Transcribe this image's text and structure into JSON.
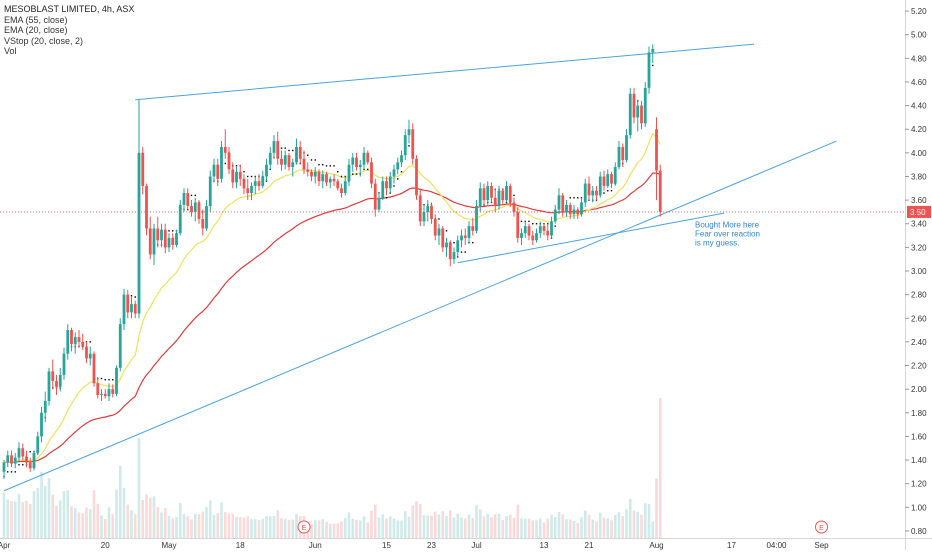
{
  "legend": {
    "symbol_line": "MESOBLAST LIMITED, 4h, ASX",
    "ema55": "EMA (55, close)",
    "ema20": "EMA (20, close)",
    "vstop": "VStop (20, close, 2)",
    "vol": "Vol"
  },
  "chart_data": {
    "type": "candlestick",
    "title": "MESOBLAST LIMITED, 4h, ASX",
    "ylim": [
      0.74,
      5.26
    ],
    "y_ticks": [
      "5.20",
      "5.00",
      "4.80",
      "4.60",
      "4.40",
      "4.20",
      "4.00",
      "3.80",
      "3.60",
      "3.40",
      "3.20",
      "3.00",
      "2.80",
      "2.60",
      "2.40",
      "2.20",
      "2.00",
      "1.80",
      "1.60",
      "1.40",
      "1.20",
      "1.00",
      "0.80"
    ],
    "x_ticks": [
      {
        "label": "Apr",
        "bar": 0
      },
      {
        "label": "20",
        "bar": 27
      },
      {
        "label": "May",
        "bar": 44
      },
      {
        "label": "18",
        "bar": 63
      },
      {
        "label": "Jun",
        "bar": 83
      },
      {
        "label": "15",
        "bar": 102
      },
      {
        "label": "23",
        "bar": 114
      },
      {
        "label": "Jul",
        "bar": 126
      },
      {
        "label": "13",
        "bar": 144
      },
      {
        "label": "21",
        "bar": 156
      },
      {
        "label": "Aug",
        "bar": 174
      },
      {
        "label": "17",
        "bar": 194
      },
      {
        "label": "04:00",
        "bar": 206
      },
      {
        "label": "Sep",
        "bar": 218
      }
    ],
    "last_price": {
      "value": 3.5,
      "label": "3.50"
    },
    "annotation": {
      "text": [
        "Bought More here",
        "Fear over reaction",
        "is my guess."
      ],
      "bar": 180,
      "y": 3.42
    },
    "earnings_markers": [
      {
        "label": "E",
        "bar": 80
      },
      {
        "label": "E",
        "bar": 218
      }
    ],
    "trend_lines": [
      {
        "from": [
          35,
          4.45
        ],
        "to": [
          200,
          4.92
        ]
      },
      {
        "from": [
          0,
          1.14
        ],
        "to": [
          222,
          4.1
        ]
      },
      {
        "from": [
          121,
          3.07
        ],
        "to": [
          192,
          3.49
        ]
      }
    ],
    "colors": {
      "up": "#26a69a",
      "down": "#ef5350",
      "ema55": "#e03b3b",
      "ema20": "#f0e15b",
      "vstop": "#000000",
      "trend": "#4aa3df",
      "price_tag": "#ef5350"
    },
    "candles": [
      {
        "o": 1.3,
        "h": 1.4,
        "l": 1.24,
        "c": 1.38
      },
      {
        "o": 1.38,
        "h": 1.48,
        "l": 1.34,
        "c": 1.44
      },
      {
        "o": 1.44,
        "h": 1.48,
        "l": 1.34,
        "c": 1.37
      },
      {
        "o": 1.37,
        "h": 1.46,
        "l": 1.33,
        "c": 1.42
      },
      {
        "o": 1.42,
        "h": 1.55,
        "l": 1.38,
        "c": 1.5
      },
      {
        "o": 1.5,
        "h": 1.54,
        "l": 1.4,
        "c": 1.43
      },
      {
        "o": 1.43,
        "h": 1.48,
        "l": 1.34,
        "c": 1.38
      },
      {
        "o": 1.38,
        "h": 1.42,
        "l": 1.3,
        "c": 1.33
      },
      {
        "o": 1.33,
        "h": 1.48,
        "l": 1.31,
        "c": 1.46
      },
      {
        "o": 1.46,
        "h": 1.64,
        "l": 1.44,
        "c": 1.6
      },
      {
        "o": 1.6,
        "h": 1.85,
        "l": 1.55,
        "c": 1.8
      },
      {
        "o": 1.8,
        "h": 1.98,
        "l": 1.72,
        "c": 1.9
      },
      {
        "o": 1.9,
        "h": 2.18,
        "l": 1.86,
        "c": 2.15
      },
      {
        "o": 2.15,
        "h": 2.25,
        "l": 2.0,
        "c": 2.07
      },
      {
        "o": 2.07,
        "h": 2.12,
        "l": 1.95,
        "c": 2.02
      },
      {
        "o": 2.02,
        "h": 2.18,
        "l": 1.98,
        "c": 2.12
      },
      {
        "o": 2.12,
        "h": 2.35,
        "l": 2.08,
        "c": 2.3
      },
      {
        "o": 2.3,
        "h": 2.55,
        "l": 2.25,
        "c": 2.5
      },
      {
        "o": 2.5,
        "h": 2.52,
        "l": 2.32,
        "c": 2.38
      },
      {
        "o": 2.38,
        "h": 2.48,
        "l": 2.3,
        "c": 2.44
      },
      {
        "o": 2.44,
        "h": 2.5,
        "l": 2.35,
        "c": 2.4
      },
      {
        "o": 2.4,
        "h": 2.47,
        "l": 2.33,
        "c": 2.36
      },
      {
        "o": 2.36,
        "h": 2.4,
        "l": 2.22,
        "c": 2.26
      },
      {
        "o": 2.26,
        "h": 2.36,
        "l": 2.2,
        "c": 2.3
      },
      {
        "o": 2.3,
        "h": 2.32,
        "l": 2.02,
        "c": 2.05
      },
      {
        "o": 2.05,
        "h": 2.1,
        "l": 1.92,
        "c": 1.95
      },
      {
        "o": 1.95,
        "h": 2.0,
        "l": 1.9,
        "c": 1.96
      },
      {
        "o": 1.96,
        "h": 2.0,
        "l": 1.92,
        "c": 1.94
      },
      {
        "o": 1.94,
        "h": 2.05,
        "l": 1.9,
        "c": 2.0
      },
      {
        "o": 2.0,
        "h": 2.04,
        "l": 1.93,
        "c": 1.96
      },
      {
        "o": 1.96,
        "h": 2.2,
        "l": 1.94,
        "c": 2.18
      },
      {
        "o": 2.18,
        "h": 2.6,
        "l": 2.15,
        "c": 2.55
      },
      {
        "o": 2.55,
        "h": 2.85,
        "l": 2.5,
        "c": 2.8
      },
      {
        "o": 2.8,
        "h": 2.84,
        "l": 2.6,
        "c": 2.65
      },
      {
        "o": 2.65,
        "h": 2.78,
        "l": 2.6,
        "c": 2.72
      },
      {
        "o": 2.72,
        "h": 2.75,
        "l": 2.6,
        "c": 2.64
      },
      {
        "o": 2.64,
        "h": 4.45,
        "l": 2.6,
        "c": 4.0
      },
      {
        "o": 4.0,
        "h": 4.05,
        "l": 3.65,
        "c": 3.72
      },
      {
        "o": 3.72,
        "h": 3.74,
        "l": 3.3,
        "c": 3.36
      },
      {
        "o": 3.36,
        "h": 3.46,
        "l": 3.1,
        "c": 3.14
      },
      {
        "o": 3.14,
        "h": 3.4,
        "l": 3.05,
        "c": 3.36
      },
      {
        "o": 3.36,
        "h": 3.46,
        "l": 3.2,
        "c": 3.26
      },
      {
        "o": 3.26,
        "h": 3.4,
        "l": 3.2,
        "c": 3.35
      },
      {
        "o": 3.35,
        "h": 3.4,
        "l": 3.15,
        "c": 3.2
      },
      {
        "o": 3.2,
        "h": 3.32,
        "l": 3.16,
        "c": 3.28
      },
      {
        "o": 3.28,
        "h": 3.32,
        "l": 3.18,
        "c": 3.22
      },
      {
        "o": 3.22,
        "h": 3.35,
        "l": 3.2,
        "c": 3.32
      },
      {
        "o": 3.32,
        "h": 3.6,
        "l": 3.3,
        "c": 3.56
      },
      {
        "o": 3.56,
        "h": 3.7,
        "l": 3.5,
        "c": 3.66
      },
      {
        "o": 3.66,
        "h": 3.7,
        "l": 3.52,
        "c": 3.55
      },
      {
        "o": 3.55,
        "h": 3.6,
        "l": 3.46,
        "c": 3.5
      },
      {
        "o": 3.5,
        "h": 3.62,
        "l": 3.42,
        "c": 3.58
      },
      {
        "o": 3.58,
        "h": 3.6,
        "l": 3.4,
        "c": 3.44
      },
      {
        "o": 3.44,
        "h": 3.52,
        "l": 3.3,
        "c": 3.36
      },
      {
        "o": 3.36,
        "h": 3.6,
        "l": 3.34,
        "c": 3.55
      },
      {
        "o": 3.55,
        "h": 3.85,
        "l": 3.5,
        "c": 3.8
      },
      {
        "o": 3.8,
        "h": 3.95,
        "l": 3.75,
        "c": 3.9
      },
      {
        "o": 3.9,
        "h": 3.95,
        "l": 3.72,
        "c": 3.78
      },
      {
        "o": 3.78,
        "h": 4.1,
        "l": 3.75,
        "c": 4.05
      },
      {
        "o": 4.05,
        "h": 4.2,
        "l": 3.95,
        "c": 4.0
      },
      {
        "o": 4.0,
        "h": 4.05,
        "l": 3.82,
        "c": 3.86
      },
      {
        "o": 3.86,
        "h": 3.92,
        "l": 3.7,
        "c": 3.75
      },
      {
        "o": 3.75,
        "h": 3.88,
        "l": 3.7,
        "c": 3.84
      },
      {
        "o": 3.84,
        "h": 3.9,
        "l": 3.72,
        "c": 3.78
      },
      {
        "o": 3.78,
        "h": 3.82,
        "l": 3.65,
        "c": 3.7
      },
      {
        "o": 3.7,
        "h": 3.78,
        "l": 3.6,
        "c": 3.66
      },
      {
        "o": 3.66,
        "h": 3.75,
        "l": 3.6,
        "c": 3.72
      },
      {
        "o": 3.72,
        "h": 3.8,
        "l": 3.65,
        "c": 3.76
      },
      {
        "o": 3.76,
        "h": 3.82,
        "l": 3.68,
        "c": 3.72
      },
      {
        "o": 3.72,
        "h": 3.85,
        "l": 3.7,
        "c": 3.8
      },
      {
        "o": 3.8,
        "h": 3.95,
        "l": 3.76,
        "c": 3.9
      },
      {
        "o": 3.9,
        "h": 4.05,
        "l": 3.86,
        "c": 4.0
      },
      {
        "o": 4.0,
        "h": 4.15,
        "l": 3.95,
        "c": 4.1
      },
      {
        "o": 4.1,
        "h": 4.18,
        "l": 3.9,
        "c": 3.95
      },
      {
        "o": 3.95,
        "h": 4.02,
        "l": 3.85,
        "c": 3.9
      },
      {
        "o": 3.9,
        "h": 4.02,
        "l": 3.86,
        "c": 3.98
      },
      {
        "o": 3.98,
        "h": 4.0,
        "l": 3.85,
        "c": 3.88
      },
      {
        "o": 3.88,
        "h": 3.95,
        "l": 3.8,
        "c": 3.92
      },
      {
        "o": 3.92,
        "h": 4.12,
        "l": 3.9,
        "c": 4.05
      },
      {
        "o": 4.05,
        "h": 4.1,
        "l": 3.9,
        "c": 3.95
      },
      {
        "o": 3.95,
        "h": 4.02,
        "l": 3.82,
        "c": 3.86
      },
      {
        "o": 3.86,
        "h": 3.92,
        "l": 3.8,
        "c": 3.84
      },
      {
        "o": 3.84,
        "h": 3.86,
        "l": 3.76,
        "c": 3.8
      },
      {
        "o": 3.8,
        "h": 3.88,
        "l": 3.74,
        "c": 3.84
      },
      {
        "o": 3.84,
        "h": 3.86,
        "l": 3.72,
        "c": 3.76
      },
      {
        "o": 3.76,
        "h": 3.85,
        "l": 3.7,
        "c": 3.82
      },
      {
        "o": 3.82,
        "h": 3.84,
        "l": 3.72,
        "c": 3.75
      },
      {
        "o": 3.75,
        "h": 3.8,
        "l": 3.7,
        "c": 3.78
      },
      {
        "o": 3.78,
        "h": 3.82,
        "l": 3.72,
        "c": 3.76
      },
      {
        "o": 3.76,
        "h": 3.78,
        "l": 3.68,
        "c": 3.7
      },
      {
        "o": 3.7,
        "h": 3.74,
        "l": 3.62,
        "c": 3.66
      },
      {
        "o": 3.66,
        "h": 3.8,
        "l": 3.64,
        "c": 3.76
      },
      {
        "o": 3.76,
        "h": 3.95,
        "l": 3.72,
        "c": 3.9
      },
      {
        "o": 3.9,
        "h": 4.0,
        "l": 3.84,
        "c": 3.96
      },
      {
        "o": 3.96,
        "h": 4.0,
        "l": 3.85,
        "c": 3.88
      },
      {
        "o": 3.88,
        "h": 3.94,
        "l": 3.8,
        "c": 3.9
      },
      {
        "o": 3.9,
        "h": 4.05,
        "l": 3.86,
        "c": 4.0
      },
      {
        "o": 4.0,
        "h": 4.02,
        "l": 3.9,
        "c": 3.92
      },
      {
        "o": 3.92,
        "h": 3.96,
        "l": 3.7,
        "c": 3.74
      },
      {
        "o": 3.74,
        "h": 3.78,
        "l": 3.46,
        "c": 3.52
      },
      {
        "o": 3.52,
        "h": 3.66,
        "l": 3.5,
        "c": 3.62
      },
      {
        "o": 3.62,
        "h": 3.8,
        "l": 3.6,
        "c": 3.76
      },
      {
        "o": 3.76,
        "h": 3.8,
        "l": 3.64,
        "c": 3.7
      },
      {
        "o": 3.7,
        "h": 3.84,
        "l": 3.66,
        "c": 3.8
      },
      {
        "o": 3.8,
        "h": 3.9,
        "l": 3.74,
        "c": 3.86
      },
      {
        "o": 3.86,
        "h": 3.96,
        "l": 3.82,
        "c": 3.92
      },
      {
        "o": 3.92,
        "h": 4.02,
        "l": 3.88,
        "c": 3.98
      },
      {
        "o": 3.98,
        "h": 4.2,
        "l": 3.94,
        "c": 4.15
      },
      {
        "o": 4.15,
        "h": 4.28,
        "l": 4.08,
        "c": 4.2
      },
      {
        "o": 4.2,
        "h": 4.25,
        "l": 3.9,
        "c": 3.95
      },
      {
        "o": 3.95,
        "h": 3.98,
        "l": 3.6,
        "c": 3.64
      },
      {
        "o": 3.64,
        "h": 3.7,
        "l": 3.38,
        "c": 3.42
      },
      {
        "o": 3.42,
        "h": 3.56,
        "l": 3.38,
        "c": 3.5
      },
      {
        "o": 3.5,
        "h": 3.6,
        "l": 3.42,
        "c": 3.55
      },
      {
        "o": 3.55,
        "h": 3.58,
        "l": 3.4,
        "c": 3.44
      },
      {
        "o": 3.44,
        "h": 3.48,
        "l": 3.26,
        "c": 3.3
      },
      {
        "o": 3.3,
        "h": 3.4,
        "l": 3.22,
        "c": 3.36
      },
      {
        "o": 3.36,
        "h": 3.38,
        "l": 3.16,
        "c": 3.2
      },
      {
        "o": 3.2,
        "h": 3.28,
        "l": 3.12,
        "c": 3.24
      },
      {
        "o": 3.24,
        "h": 3.26,
        "l": 3.04,
        "c": 3.1
      },
      {
        "o": 3.1,
        "h": 3.2,
        "l": 3.06,
        "c": 3.16
      },
      {
        "o": 3.16,
        "h": 3.3,
        "l": 3.12,
        "c": 3.26
      },
      {
        "o": 3.26,
        "h": 3.35,
        "l": 3.2,
        "c": 3.3
      },
      {
        "o": 3.3,
        "h": 3.36,
        "l": 3.22,
        "c": 3.28
      },
      {
        "o": 3.28,
        "h": 3.42,
        "l": 3.24,
        "c": 3.38
      },
      {
        "o": 3.38,
        "h": 3.45,
        "l": 3.3,
        "c": 3.34
      },
      {
        "o": 3.34,
        "h": 3.6,
        "l": 3.32,
        "c": 3.55
      },
      {
        "o": 3.55,
        "h": 3.75,
        "l": 3.5,
        "c": 3.7
      },
      {
        "o": 3.7,
        "h": 3.74,
        "l": 3.56,
        "c": 3.6
      },
      {
        "o": 3.6,
        "h": 3.76,
        "l": 3.56,
        "c": 3.72
      },
      {
        "o": 3.72,
        "h": 3.75,
        "l": 3.58,
        "c": 3.62
      },
      {
        "o": 3.62,
        "h": 3.7,
        "l": 3.5,
        "c": 3.55
      },
      {
        "o": 3.55,
        "h": 3.72,
        "l": 3.52,
        "c": 3.68
      },
      {
        "o": 3.68,
        "h": 3.7,
        "l": 3.56,
        "c": 3.6
      },
      {
        "o": 3.6,
        "h": 3.76,
        "l": 3.58,
        "c": 3.72
      },
      {
        "o": 3.72,
        "h": 3.74,
        "l": 3.54,
        "c": 3.58
      },
      {
        "o": 3.58,
        "h": 3.62,
        "l": 3.46,
        "c": 3.5
      },
      {
        "o": 3.5,
        "h": 3.54,
        "l": 3.24,
        "c": 3.28
      },
      {
        "o": 3.28,
        "h": 3.36,
        "l": 3.22,
        "c": 3.32
      },
      {
        "o": 3.32,
        "h": 3.42,
        "l": 3.28,
        "c": 3.38
      },
      {
        "o": 3.38,
        "h": 3.4,
        "l": 3.26,
        "c": 3.3
      },
      {
        "o": 3.3,
        "h": 3.34,
        "l": 3.22,
        "c": 3.26
      },
      {
        "o": 3.26,
        "h": 3.36,
        "l": 3.24,
        "c": 3.32
      },
      {
        "o": 3.32,
        "h": 3.42,
        "l": 3.28,
        "c": 3.38
      },
      {
        "o": 3.38,
        "h": 3.4,
        "l": 3.3,
        "c": 3.34
      },
      {
        "o": 3.34,
        "h": 3.4,
        "l": 3.26,
        "c": 3.3
      },
      {
        "o": 3.3,
        "h": 3.46,
        "l": 3.28,
        "c": 3.42
      },
      {
        "o": 3.42,
        "h": 3.56,
        "l": 3.4,
        "c": 3.52
      },
      {
        "o": 3.52,
        "h": 3.7,
        "l": 3.48,
        "c": 3.64
      },
      {
        "o": 3.64,
        "h": 3.66,
        "l": 3.46,
        "c": 3.5
      },
      {
        "o": 3.5,
        "h": 3.6,
        "l": 3.46,
        "c": 3.56
      },
      {
        "o": 3.56,
        "h": 3.58,
        "l": 3.44,
        "c": 3.48
      },
      {
        "o": 3.48,
        "h": 3.56,
        "l": 3.44,
        "c": 3.52
      },
      {
        "o": 3.52,
        "h": 3.54,
        "l": 3.44,
        "c": 3.48
      },
      {
        "o": 3.48,
        "h": 3.62,
        "l": 3.46,
        "c": 3.58
      },
      {
        "o": 3.58,
        "h": 3.78,
        "l": 3.54,
        "c": 3.74
      },
      {
        "o": 3.74,
        "h": 3.8,
        "l": 3.6,
        "c": 3.64
      },
      {
        "o": 3.64,
        "h": 3.72,
        "l": 3.58,
        "c": 3.68
      },
      {
        "o": 3.68,
        "h": 3.72,
        "l": 3.6,
        "c": 3.64
      },
      {
        "o": 3.64,
        "h": 3.84,
        "l": 3.62,
        "c": 3.8
      },
      {
        "o": 3.8,
        "h": 3.85,
        "l": 3.68,
        "c": 3.72
      },
      {
        "o": 3.72,
        "h": 3.86,
        "l": 3.7,
        "c": 3.82
      },
      {
        "o": 3.82,
        "h": 3.84,
        "l": 3.7,
        "c": 3.74
      },
      {
        "o": 3.74,
        "h": 3.92,
        "l": 3.72,
        "c": 3.88
      },
      {
        "o": 3.88,
        "h": 4.1,
        "l": 3.86,
        "c": 4.05
      },
      {
        "o": 4.05,
        "h": 4.08,
        "l": 3.88,
        "c": 3.94
      },
      {
        "o": 3.94,
        "h": 4.2,
        "l": 3.92,
        "c": 4.15
      },
      {
        "o": 4.15,
        "h": 4.55,
        "l": 4.12,
        "c": 4.5
      },
      {
        "o": 4.5,
        "h": 4.55,
        "l": 4.25,
        "c": 4.3
      },
      {
        "o": 4.3,
        "h": 4.45,
        "l": 4.18,
        "c": 4.4
      },
      {
        "o": 4.4,
        "h": 4.44,
        "l": 4.2,
        "c": 4.25
      },
      {
        "o": 4.25,
        "h": 4.6,
        "l": 4.22,
        "c": 4.55
      },
      {
        "o": 4.55,
        "h": 4.9,
        "l": 4.5,
        "c": 4.85
      },
      {
        "o": 4.85,
        "h": 4.92,
        "l": 4.76,
        "c": 4.88
      },
      {
        "o": 4.2,
        "h": 4.3,
        "l": 3.6,
        "c": 3.85
      },
      {
        "o": 3.85,
        "h": 3.9,
        "l": 3.46,
        "c": 3.5
      }
    ]
  }
}
